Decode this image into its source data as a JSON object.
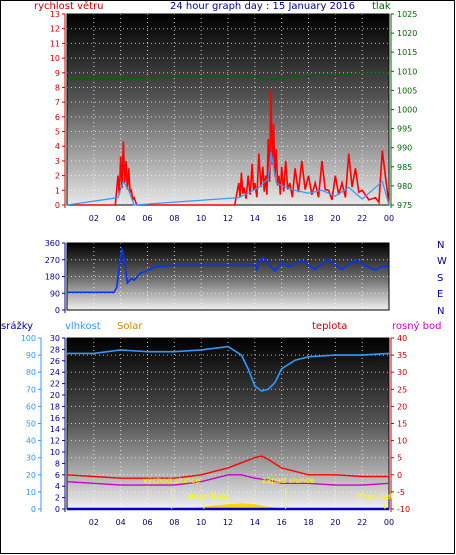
{
  "header": {
    "left_label": "rychlost větru",
    "title": "24 hour graph day : 15 January 2016",
    "right_label": "tlak"
  },
  "middle": {
    "compass": [
      "N",
      "W",
      "S",
      "E",
      "N"
    ]
  },
  "bottom_header": {
    "labels": [
      "srážky",
      "vlhkost",
      "Solar",
      "teplota",
      "rosný bod"
    ]
  },
  "annotations": {
    "sunrise": "východ slunce",
    "sunset": "západ slunce",
    "moonrise": "Moon Rise",
    "moonset": "Moon Set"
  },
  "colors": {
    "wind": "#ff0000",
    "gust": "#ff0000",
    "wind_avg": "#3399ff",
    "pressure": "#006600",
    "direction": "#0033ff",
    "humidity": "#3399ff",
    "temperature": "#ff0000",
    "dewpoint": "#cc00cc",
    "solar": "#ffd700",
    "rain": "#0000cc"
  },
  "chart_data": [
    {
      "type": "area",
      "title": "24 hour graph day : 15 January 2016",
      "xlabel": "",
      "x_ticks": [
        "02",
        "04",
        "06",
        "08",
        "10",
        "12",
        "14",
        "16",
        "18",
        "20",
        "22",
        "00"
      ],
      "y_left": {
        "label": "rychlost větru",
        "ticks": [
          0,
          1,
          2,
          3,
          4,
          5,
          6,
          7,
          8,
          9,
          10,
          11,
          12,
          13
        ],
        "range": [
          0,
          13
        ]
      },
      "y_right": {
        "label": "tlak",
        "ticks": [
          975,
          980,
          985,
          990,
          995,
          1000,
          1005,
          1010,
          1015,
          1020,
          1025
        ],
        "range": [
          975,
          1025
        ]
      },
      "grid": true,
      "series": [
        {
          "name": "rychlost větru",
          "axis": "left",
          "x": [
            0,
            3.6,
            3.8,
            4.0,
            4.2,
            4.4,
            4.6,
            4.8,
            5.0,
            5.2,
            12.5,
            12.8,
            13.0,
            13.2,
            13.5,
            13.8,
            14.0,
            14.3,
            14.6,
            14.8,
            15.0,
            15.2,
            15.4,
            15.6,
            15.8,
            16.0,
            16.3,
            16.6,
            17.0,
            17.5,
            18.0,
            18.5,
            19.0,
            19.5,
            20.0,
            20.5,
            21.0,
            21.5,
            22.0,
            23.0,
            23.5,
            24.0
          ],
          "values": [
            0,
            0,
            2.0,
            3.3,
            4.3,
            3.0,
            2.5,
            1.0,
            0.5,
            0,
            0,
            1.5,
            2.2,
            1.2,
            2.0,
            2.8,
            1.5,
            3.5,
            2.6,
            2.0,
            4.5,
            7.8,
            5.5,
            3.8,
            2.0,
            2.6,
            3.0,
            1.5,
            2.5,
            3.0,
            2.0,
            1.5,
            3.0,
            1.0,
            2.0,
            1.5,
            3.5,
            2.5,
            1.0,
            0.5,
            3.7,
            0
          ]
        },
        {
          "name": "",
          "axis": "left",
          "x": [
            0,
            3.8,
            4.2,
            4.6,
            5.0,
            12.8,
            13.5,
            14.3,
            15.0,
            15.2,
            15.6,
            16.3,
            17.0,
            18.0,
            19.0,
            20.0,
            21.0,
            22.0,
            23.5,
            24.0
          ],
          "values": [
            0,
            0.5,
            1.6,
            1.0,
            0,
            0.5,
            0.8,
            1.2,
            1.8,
            3.6,
            1.5,
            1.2,
            1.0,
            0.8,
            1.0,
            0.6,
            1.2,
            0.4,
            1.6,
            0
          ]
        },
        {
          "name": "tlak",
          "axis": "right",
          "x": [
            0,
            4,
            8,
            12,
            14,
            15,
            16,
            18,
            20,
            22,
            24
          ],
          "values": [
            1008,
            1008,
            1008.5,
            1008.5,
            1008.5,
            1007.8,
            1008.2,
            1009,
            1009,
            1009.5,
            1009.5
          ]
        }
      ]
    },
    {
      "type": "line",
      "x_ticks": [
        "02",
        "04",
        "06",
        "08",
        "10",
        "12",
        "14",
        "16",
        "18",
        "20",
        "22",
        "00"
      ],
      "y_left": {
        "ticks": [
          0,
          90,
          180,
          270,
          360
        ],
        "range": [
          0,
          360
        ]
      },
      "y_right": {
        "ticks": [
          "N",
          "W",
          "S",
          "E",
          "N"
        ]
      },
      "grid": true,
      "series": [
        {
          "name": "",
          "x": [
            0,
            3.5,
            3.7,
            4.0,
            4.1,
            4.3,
            4.5,
            4.8,
            5.0,
            5.5,
            6.0,
            6.5,
            7.0,
            8.0,
            10.0,
            12.0,
            14.0,
            14.3,
            15.0,
            15.5,
            16.0,
            17.0,
            18.0,
            19.0,
            20.0,
            21.0,
            22.0,
            23.0,
            24.0
          ],
          "values": [
            95,
            95,
            120,
            280,
            330,
            260,
            145,
            170,
            160,
            200,
            210,
            230,
            235,
            240,
            240,
            240,
            240,
            260,
            250,
            210,
            255,
            245,
            240,
            250,
            240,
            245,
            250,
            215,
            230
          ]
        }
      ]
    },
    {
      "type": "line",
      "x_ticks": [
        "02",
        "04",
        "06",
        "08",
        "10",
        "12",
        "14",
        "16",
        "18",
        "20",
        "22",
        "00"
      ],
      "y_left": {
        "label": "vlhkost",
        "ticks": [
          0,
          10,
          20,
          30,
          40,
          50,
          60,
          70,
          80,
          90,
          100
        ],
        "range": [
          0,
          100
        ]
      },
      "y_rain": {
        "label": "srážky",
        "ticks": [
          0,
          2,
          4,
          6,
          8,
          10,
          12,
          14,
          16,
          18,
          20,
          22,
          24,
          26,
          28,
          30
        ],
        "range": [
          0,
          30
        ]
      },
      "y_right": {
        "label": "teplota",
        "ticks": [
          -10,
          -5,
          0,
          5,
          10,
          15,
          20,
          25,
          30,
          35,
          40
        ],
        "range": [
          -10,
          40
        ]
      },
      "grid": true,
      "series": [
        {
          "name": "vlhkost",
          "axis": "left",
          "x": [
            0,
            2,
            4,
            6,
            8,
            10,
            12,
            13,
            13.5,
            14,
            14.5,
            15,
            15.5,
            16,
            17,
            18,
            20,
            22,
            24
          ],
          "values": [
            91,
            91,
            93,
            92,
            92,
            93,
            95,
            90,
            82,
            72,
            69,
            70,
            74,
            82,
            87,
            89,
            90,
            90,
            91
          ]
        },
        {
          "name": "teplota",
          "axis": "right",
          "x": [
            0,
            2,
            4,
            6,
            8,
            10,
            12,
            13,
            14,
            14.5,
            15,
            16,
            17,
            18,
            20,
            22,
            24
          ],
          "values": [
            0,
            -0.5,
            -1,
            -1,
            -1,
            0,
            2,
            3.5,
            5,
            5.5,
            4.5,
            2,
            1,
            0,
            0,
            -0.5,
            -0.5
          ]
        },
        {
          "name": "rosný bod",
          "axis": "right",
          "x": [
            0,
            2,
            4,
            6,
            8,
            10,
            12,
            13,
            14,
            15,
            16,
            18,
            20,
            22,
            24
          ],
          "values": [
            -2,
            -2.5,
            -3,
            -3,
            -3,
            -2,
            0,
            0,
            -1,
            -1.5,
            -2.5,
            -2.5,
            -3,
            -3,
            -2.5
          ]
        },
        {
          "name": "Solar",
          "axis": "left",
          "x": [
            0,
            7.8,
            9,
            10,
            11,
            12,
            13,
            14,
            15,
            16.3,
            24
          ],
          "values": [
            0,
            0,
            0.3,
            0.8,
            1.8,
            2.5,
            3.0,
            2.5,
            1.0,
            0,
            0
          ]
        },
        {
          "name": "srážky",
          "axis": "rain",
          "x": [
            0,
            24
          ],
          "values": [
            0,
            0
          ]
        }
      ],
      "markers": {
        "sunrise_x": 7.8,
        "sunset_x": 16.3,
        "moonrise_x": 10.2,
        "moonset_x": 23.7
      }
    }
  ]
}
